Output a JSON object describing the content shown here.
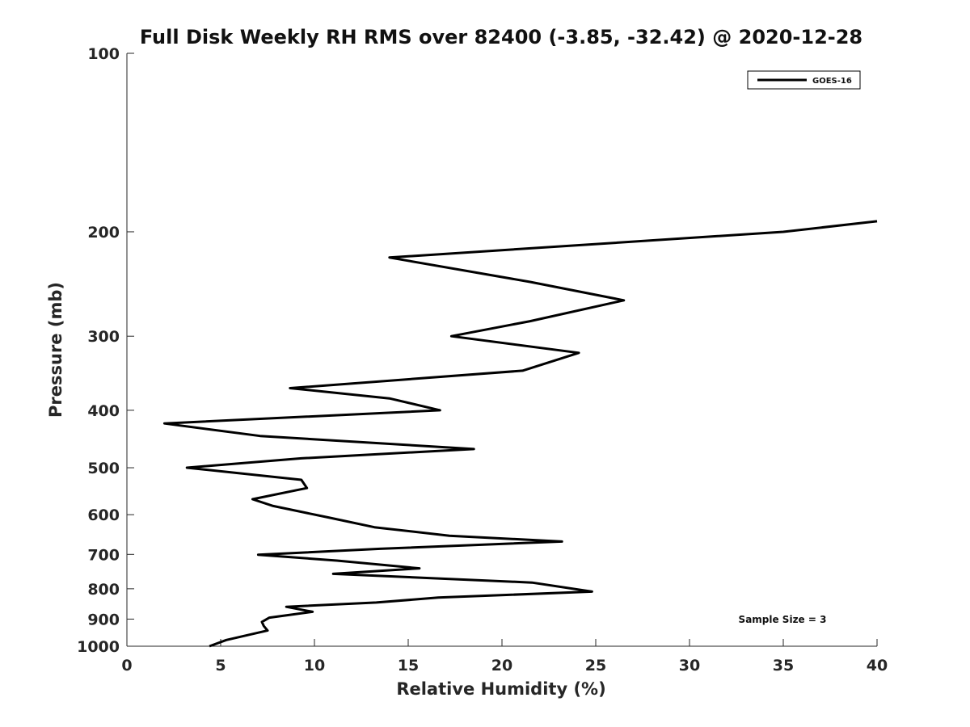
{
  "chart_data": {
    "type": "line",
    "title": "Full Disk Weekly RH RMS over 82400 (-3.85, -32.42) @ 2020-12-28",
    "xlabel": "Relative Humidity (%)",
    "ylabel": "Pressure (mb)",
    "xlim": [
      0,
      40
    ],
    "ylim": [
      100,
      1000
    ],
    "y_scale": "log",
    "y_reversed": true,
    "x_ticks": [
      0,
      5,
      10,
      15,
      20,
      25,
      30,
      35,
      40
    ],
    "y_ticks": [
      100,
      200,
      300,
      400,
      500,
      600,
      700,
      800,
      900,
      1000
    ],
    "grid": false,
    "legend_position": "top-right",
    "annotation": "Sample Size = 3",
    "series": [
      {
        "name": "GOES-16",
        "color": "#000000",
        "points": [
          [
            40.0,
            192
          ],
          [
            35.0,
            200
          ],
          [
            14.0,
            221
          ],
          [
            21.5,
            243
          ],
          [
            26.5,
            261
          ],
          [
            21.5,
            283
          ],
          [
            17.3,
            300
          ],
          [
            24.1,
            320
          ],
          [
            21.1,
            343
          ],
          [
            8.7,
            367
          ],
          [
            14.0,
            382
          ],
          [
            16.7,
            400
          ],
          [
            2.0,
            421
          ],
          [
            7.1,
            442
          ],
          [
            18.5,
            465
          ],
          [
            9.3,
            482
          ],
          [
            3.2,
            500
          ],
          [
            9.3,
            524
          ],
          [
            9.6,
            541
          ],
          [
            6.7,
            565
          ],
          [
            7.8,
            580
          ],
          [
            10.8,
            607
          ],
          [
            13.2,
            630
          ],
          [
            17.2,
            651
          ],
          [
            23.2,
            666
          ],
          [
            13.5,
            685
          ],
          [
            7.0,
            701
          ],
          [
            11.2,
            717
          ],
          [
            15.6,
            739
          ],
          [
            11.0,
            755
          ],
          [
            21.6,
            781
          ],
          [
            24.8,
            809
          ],
          [
            16.6,
            828
          ],
          [
            13.3,
            844
          ],
          [
            8.5,
            858
          ],
          [
            9.9,
            875
          ],
          [
            7.6,
            895
          ],
          [
            7.2,
            910
          ],
          [
            7.3,
            925
          ],
          [
            7.5,
            941
          ],
          [
            5.3,
            976
          ],
          [
            4.4,
            1000
          ]
        ]
      }
    ]
  }
}
